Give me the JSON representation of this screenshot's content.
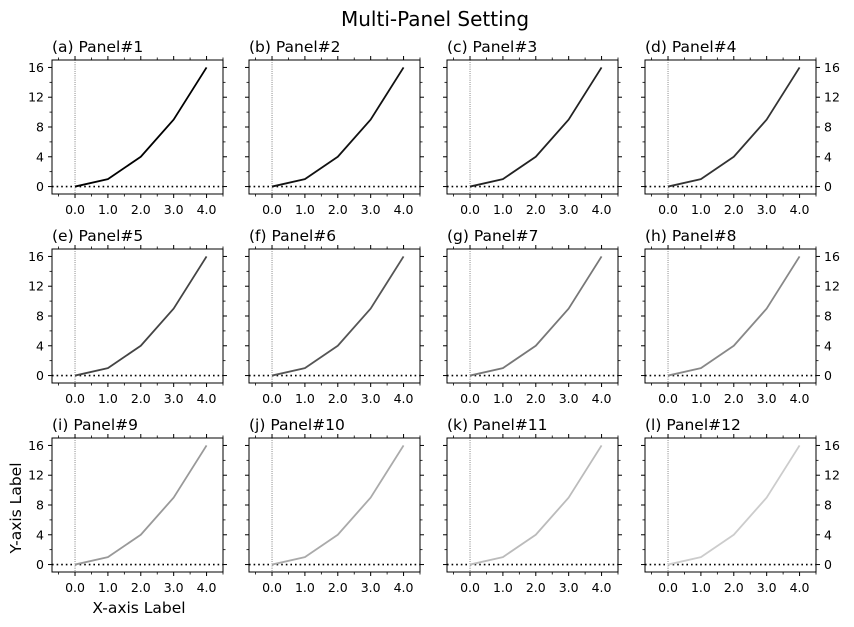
{
  "figure": {
    "title": "Multi-Panel Setting",
    "xlabel": "X-axis Label",
    "ylabel": "Y-axis Label"
  },
  "chart_data": {
    "type": "line",
    "layout": {
      "rows": 3,
      "cols": 4
    },
    "x": [
      0,
      1,
      2,
      3,
      4
    ],
    "y": [
      0,
      1,
      4,
      9,
      16
    ],
    "xlim": [
      -0.7,
      4.5
    ],
    "ylim": [
      -1.0,
      17.0
    ],
    "xticks": [
      0,
      1,
      2,
      3,
      4
    ],
    "xtick_labels": [
      "0.0",
      "1.0",
      "2.0",
      "3.0",
      "4.0"
    ],
    "yticks": [
      0,
      4,
      8,
      12,
      16
    ],
    "ytick_labels": [
      "0",
      "4",
      "8",
      "12",
      "16"
    ],
    "x_minor_step": 0.5,
    "y_minor_step": 2,
    "reference_lines": {
      "horizontal_y": 0,
      "vertical_x": 0,
      "style": "dotted"
    },
    "grid": false,
    "panels": [
      {
        "title": "(a) Panel#1",
        "color": "#000000"
      },
      {
        "title": "(b) Panel#2",
        "color": "#111111"
      },
      {
        "title": "(c) Panel#3",
        "color": "#222222"
      },
      {
        "title": "(d) Panel#4",
        "color": "#333333"
      },
      {
        "title": "(e) Panel#5",
        "color": "#444444"
      },
      {
        "title": "(f) Panel#6",
        "color": "#555555"
      },
      {
        "title": "(g) Panel#7",
        "color": "#777777"
      },
      {
        "title": "(h) Panel#8",
        "color": "#888888"
      },
      {
        "title": "(i) Panel#9",
        "color": "#999999"
      },
      {
        "title": "(j) Panel#10",
        "color": "#aaaaaa"
      },
      {
        "title": "(k) Panel#11",
        "color": "#bbbbbb"
      },
      {
        "title": "(l) Panel#12",
        "color": "#cccccc"
      }
    ]
  }
}
